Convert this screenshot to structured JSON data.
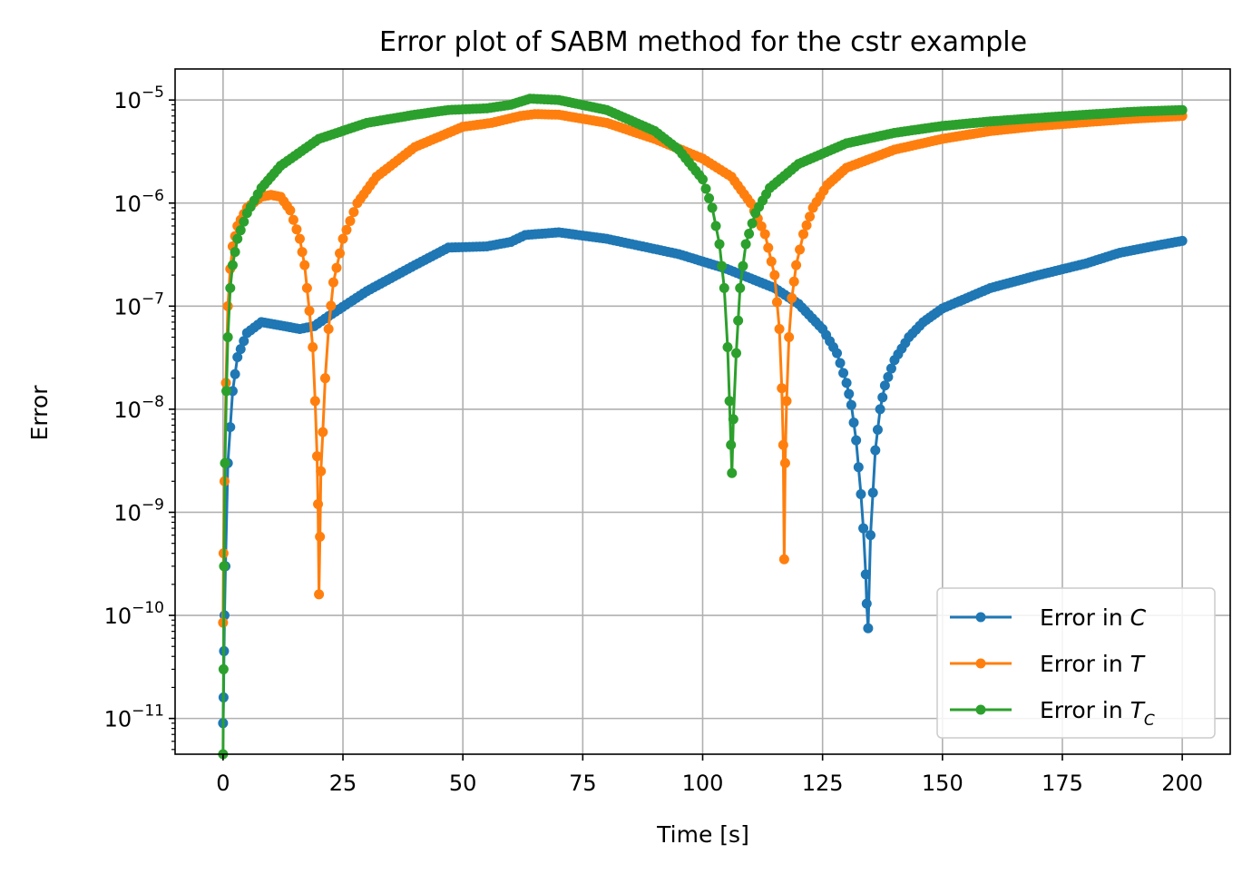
{
  "chart_data": {
    "type": "line",
    "title": "Error plot of SABM method for the cstr example",
    "xlabel": "Time [s]",
    "ylabel": "Error",
    "xlim": [
      -10,
      210
    ],
    "ylim": [
      4.5e-12,
      2e-05
    ],
    "yscale": "log",
    "grid": true,
    "legend_position": "bottom-right",
    "xticks": [
      0,
      25,
      50,
      75,
      100,
      125,
      150,
      175,
      200
    ],
    "xtick_labels": [
      "0",
      "25",
      "50",
      "75",
      "100",
      "125",
      "150",
      "175",
      "200"
    ],
    "yticks": [
      -11,
      -10,
      -9,
      -8,
      -7,
      -6,
      -5
    ],
    "ytick_labels": [
      {
        "base": "10",
        "exp": "−11"
      },
      {
        "base": "10",
        "exp": "−10"
      },
      {
        "base": "10",
        "exp": "−9"
      },
      {
        "base": "10",
        "exp": "−8"
      },
      {
        "base": "10",
        "exp": "−7"
      },
      {
        "base": "10",
        "exp": "−6"
      },
      {
        "base": "10",
        "exp": "−5"
      }
    ],
    "series": [
      {
        "name": "Error in C",
        "name_prefix": "Error in ",
        "name_var": "C",
        "name_sub": "",
        "color": "#1f77b4",
        "x": [
          0,
          0.1,
          0.2,
          0.3,
          0.5,
          1,
          2,
          3,
          5,
          8,
          12,
          16,
          19,
          22,
          30,
          40,
          47,
          55,
          60,
          63,
          70,
          80,
          95,
          105,
          115,
          120,
          125,
          128,
          130,
          131,
          132,
          133,
          133.5,
          134,
          134.2,
          134.5,
          135,
          136,
          137,
          138,
          140,
          143,
          146,
          150,
          160,
          170,
          180,
          187,
          195,
          200
        ],
        "y": [
          9e-12,
          1.6e-11,
          4.5e-11,
          1e-10,
          3e-10,
          3e-09,
          1.5e-08,
          3.2e-08,
          5.5e-08,
          7e-08,
          6.5e-08,
          6e-08,
          6.4e-08,
          8e-08,
          1.4e-07,
          2.5e-07,
          3.7e-07,
          3.8e-07,
          4.2e-07,
          4.9e-07,
          5.2e-07,
          4.5e-07,
          3.2e-07,
          2.3e-07,
          1.5e-07,
          1.05e-07,
          6e-08,
          3.5e-08,
          1.8e-08,
          1.1e-08,
          5e-09,
          1.5e-09,
          7e-10,
          2.5e-10,
          1.3e-10,
          7.5e-11,
          6e-10,
          4e-09,
          1e-08,
          1.7e-08,
          3e-08,
          5e-08,
          7e-08,
          9.5e-08,
          1.5e-07,
          2e-07,
          2.6e-07,
          3.3e-07,
          3.9e-07,
          4.3e-07
        ]
      },
      {
        "name": "Error in T",
        "name_prefix": "Error in ",
        "name_var": "T",
        "name_sub": "",
        "color": "#ff7f0e",
        "x": [
          0,
          0.1,
          0.3,
          0.6,
          1,
          1.5,
          2,
          3,
          5,
          8,
          10,
          12,
          14,
          16,
          17,
          18,
          18.7,
          19.2,
          19.6,
          19.8,
          20,
          20.2,
          20.4,
          20.8,
          21.3,
          22,
          23,
          25,
          28,
          32,
          40,
          50,
          56,
          62,
          65,
          70,
          80,
          90,
          100,
          106,
          110,
          113,
          115,
          116,
          116.5,
          116.8,
          117,
          117.2,
          117.5,
          118,
          118.6,
          119.5,
          121,
          123,
          126,
          130,
          140,
          150,
          160,
          170,
          180,
          190,
          200
        ],
        "y": [
          8.5e-11,
          4e-10,
          2e-09,
          1.8e-08,
          1e-07,
          2.3e-07,
          3.8e-07,
          6e-07,
          9e-07,
          1.15e-06,
          1.2e-06,
          1.15e-06,
          8.5e-07,
          4.5e-07,
          2.5e-07,
          9e-08,
          4e-08,
          1.2e-08,
          3.5e-09,
          1.2e-09,
          1.6e-10,
          5.8e-10,
          2.5e-09,
          6e-09,
          2e-08,
          6e-08,
          1.7e-07,
          4.5e-07,
          1e-06,
          1.8e-06,
          3.5e-06,
          5.5e-06,
          6e-06,
          7e-06,
          7.3e-06,
          7.2e-06,
          6e-06,
          4.2e-06,
          2.7e-06,
          1.8e-06,
          1e-06,
          5e-07,
          2e-07,
          6e-08,
          1.6e-08,
          4.5e-09,
          3.5e-10,
          3e-09,
          1.2e-08,
          5e-08,
          1.2e-07,
          2.5e-07,
          5e-07,
          9e-07,
          1.5e-06,
          2.2e-06,
          3.3e-06,
          4.2e-06,
          5e-06,
          5.6e-06,
          6.1e-06,
          6.6e-06,
          7e-06
        ]
      },
      {
        "name": "Error in T_C",
        "name_prefix": "Error in ",
        "name_var": "T",
        "name_sub": "C",
        "color": "#2ca02c",
        "x": [
          0,
          0.1,
          0.2,
          0.4,
          0.7,
          1,
          1.5,
          2,
          3,
          5,
          8,
          12,
          20,
          30,
          40,
          47,
          55,
          60,
          64,
          70,
          80,
          90,
          95,
          100,
          102,
          103.5,
          104.5,
          105.2,
          105.6,
          105.9,
          106.1,
          106.4,
          107,
          107.8,
          109,
          111,
          114,
          120,
          130,
          140,
          150,
          160,
          170,
          180,
          190,
          200
        ],
        "y": [
          4.5e-12,
          3e-11,
          3e-10,
          3e-09,
          1.5e-08,
          5e-08,
          1.5e-07,
          2.5e-07,
          4.5e-07,
          8e-07,
          1.4e-06,
          2.3e-06,
          4.2e-06,
          6e-06,
          7.2e-06,
          8e-06,
          8.3e-06,
          9e-06,
          1.03e-05,
          1e-05,
          8e-06,
          5e-06,
          3.3e-06,
          1.7e-06,
          9e-07,
          4e-07,
          1.5e-07,
          4e-08,
          1.2e-08,
          4.5e-09,
          2.4e-09,
          8e-09,
          3.5e-08,
          1.5e-07,
          4e-07,
          8e-07,
          1.4e-06,
          2.4e-06,
          3.8e-06,
          4.8e-06,
          5.6e-06,
          6.2e-06,
          6.7e-06,
          7.2e-06,
          7.7e-06,
          8e-06
        ]
      }
    ]
  }
}
